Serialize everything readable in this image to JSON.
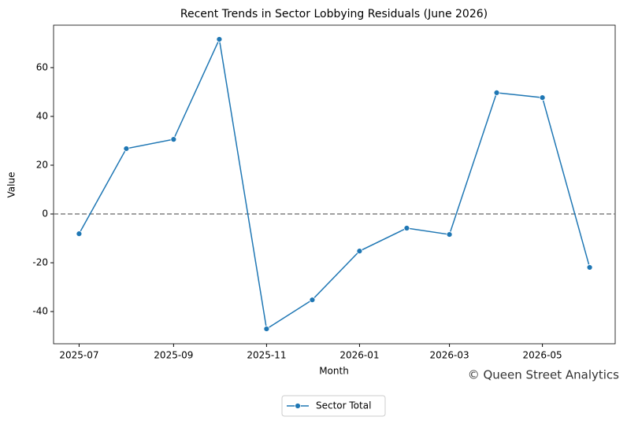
{
  "chart_data": {
    "type": "line",
    "title": "Recent Trends in Sector Lobbying Residuals (June 2026)",
    "x_label": "Month",
    "y_label": "Value",
    "x": [
      "2025-07",
      "2025-08",
      "2025-09",
      "2025-10",
      "2025-11",
      "2025-12",
      "2026-01",
      "2026-02",
      "2026-03",
      "2026-04",
      "2026-05",
      "2026-06"
    ],
    "series": [
      {
        "name": "Sector Total",
        "color": "#1f77b4",
        "values": [
          -8.1,
          26.8,
          30.6,
          71.6,
          -47.1,
          -35.2,
          -15.2,
          -5.8,
          -8.4,
          49.7,
          47.7,
          -21.9
        ]
      }
    ],
    "xticks": [
      "2025-07",
      "2025-09",
      "2025-11",
      "2026-01",
      "2026-03",
      "2026-05"
    ],
    "ylim": [
      -53.2,
      77.4
    ],
    "yticks": [
      -40,
      -20,
      0,
      20,
      40,
      60
    ],
    "hline": 0,
    "hline_color": "#808080",
    "legend": "lower center outside",
    "watermark": "© Queen Street Analytics"
  }
}
